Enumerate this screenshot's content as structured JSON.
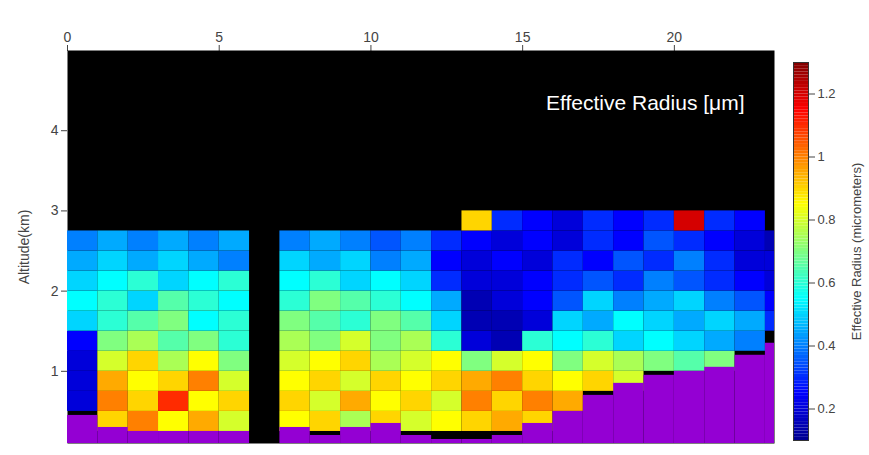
{
  "chart_data": {
    "type": "heatmap",
    "title": "Effective Radius [μm]",
    "y_label": "Altitude(km)",
    "xlim": [
      0,
      23.3
    ],
    "xticks": [
      0,
      5,
      10,
      15,
      20
    ],
    "ylim": [
      0.1,
      5
    ],
    "yticks": [
      1,
      2,
      3,
      4
    ],
    "cells": {
      "x": [
        0,
        1,
        2,
        3,
        4,
        5,
        6,
        7,
        8,
        9,
        10,
        11,
        12,
        13,
        14,
        15,
        16,
        17,
        18,
        19,
        20,
        21,
        22,
        23
      ],
      "y": [
        0,
        0.25,
        0.5,
        0.75,
        1,
        1.25,
        1.5,
        1.75,
        2,
        2.25,
        2.5,
        2.75
      ],
      "values": [
        [
          null,
          null,
          null,
          null,
          null,
          null,
          null,
          null,
          null,
          null,
          null,
          null,
          null,
          null,
          null,
          null,
          null,
          null,
          null,
          null,
          null,
          null,
          null,
          null
        ],
        [
          null,
          0.9,
          1.0,
          0.85,
          0.95,
          0.8,
          null,
          0.85,
          0.9,
          0.75,
          0.9,
          0.8,
          0.85,
          0.9,
          0.95,
          0.9,
          null,
          null,
          null,
          null,
          null,
          null,
          null,
          null
        ],
        [
          0.2,
          1.0,
          0.9,
          1.1,
          0.85,
          0.9,
          null,
          0.9,
          0.8,
          0.95,
          0.85,
          0.9,
          0.8,
          1.0,
          0.9,
          1.0,
          0.95,
          null,
          null,
          null,
          null,
          null,
          null,
          null
        ],
        [
          0.2,
          0.95,
          0.85,
          0.9,
          1.0,
          0.8,
          null,
          0.85,
          0.9,
          0.8,
          0.9,
          0.85,
          0.9,
          0.95,
          1.0,
          0.9,
          0.85,
          0.9,
          0.8,
          null,
          null,
          null,
          null,
          null
        ],
        [
          0.2,
          0.8,
          0.9,
          0.75,
          0.85,
          0.7,
          null,
          0.8,
          0.85,
          0.9,
          0.75,
          0.8,
          0.85,
          0.7,
          0.8,
          0.85,
          0.7,
          0.8,
          0.75,
          0.7,
          0.65,
          0.7,
          null,
          null
        ],
        [
          0.25,
          0.7,
          0.75,
          0.65,
          0.7,
          0.6,
          null,
          0.75,
          0.7,
          0.8,
          0.7,
          0.75,
          0.6,
          0.2,
          0.15,
          0.6,
          0.55,
          0.6,
          0.5,
          0.55,
          0.5,
          0.45,
          0.4,
          null
        ],
        [
          0.5,
          0.6,
          0.65,
          0.7,
          0.55,
          0.6,
          null,
          0.7,
          0.65,
          0.6,
          0.7,
          0.65,
          0.5,
          0.15,
          0.15,
          0.2,
          0.5,
          0.45,
          0.55,
          0.5,
          0.45,
          0.5,
          0.45,
          0.3
        ],
        [
          0.55,
          0.6,
          0.5,
          0.65,
          0.6,
          0.55,
          null,
          0.6,
          0.7,
          0.65,
          0.6,
          0.55,
          0.45,
          0.15,
          0.2,
          0.25,
          0.35,
          0.5,
          0.4,
          0.45,
          0.5,
          0.4,
          0.35,
          0.25
        ],
        [
          0.5,
          0.55,
          0.6,
          0.5,
          0.55,
          0.6,
          null,
          0.55,
          0.6,
          0.5,
          0.55,
          0.5,
          0.3,
          0.2,
          0.2,
          0.25,
          0.3,
          0.35,
          0.3,
          0.4,
          0.35,
          0.3,
          0.25,
          0.2
        ],
        [
          0.45,
          0.5,
          0.45,
          0.5,
          0.45,
          0.4,
          null,
          0.5,
          0.45,
          0.5,
          0.4,
          0.45,
          0.25,
          0.2,
          0.25,
          0.2,
          0.3,
          0.25,
          0.35,
          0.3,
          0.4,
          0.3,
          0.2,
          0.2
        ],
        [
          0.4,
          0.45,
          0.4,
          0.45,
          0.4,
          0.45,
          null,
          0.4,
          0.45,
          0.4,
          0.35,
          0.4,
          0.3,
          0.25,
          0.2,
          0.25,
          0.2,
          0.3,
          0.25,
          0.35,
          0.3,
          0.25,
          0.2,
          0.15
        ],
        [
          null,
          null,
          null,
          null,
          null,
          null,
          null,
          null,
          null,
          null,
          null,
          null,
          null,
          0.9,
          0.3,
          0.25,
          0.2,
          0.3,
          0.25,
          0.3,
          1.2,
          0.3,
          0.25,
          null
        ]
      ]
    },
    "ground": {
      "color": "#9400d3",
      "values": [
        0.45,
        0.3,
        0.25,
        0.25,
        0.25,
        0.25,
        null,
        0.3,
        0.2,
        0.3,
        0.35,
        0.2,
        0.15,
        0.15,
        0.2,
        0.35,
        0.5,
        0.7,
        0.85,
        0.95,
        1.0,
        1.05,
        1.2,
        1.35
      ]
    },
    "colorbar": {
      "label": "Effective Radius (micrometers)",
      "lim": [
        0.1,
        1.3
      ],
      "ticks": [
        0.2,
        0.4,
        0.6,
        0.8,
        1,
        1.2
      ]
    }
  }
}
